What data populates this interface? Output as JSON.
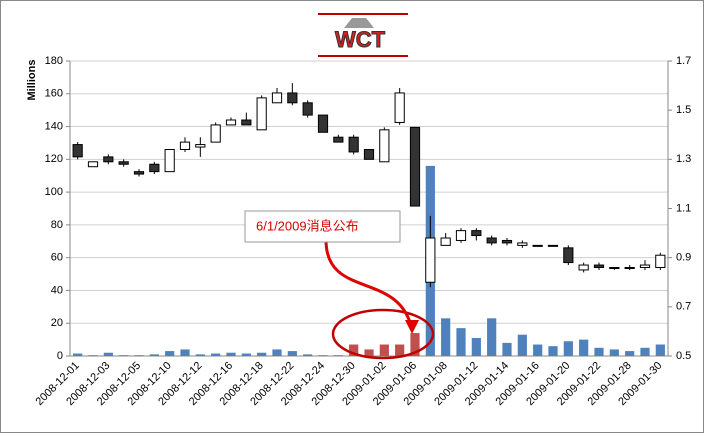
{
  "logo": "WCT",
  "chart_data": {
    "type": "candlestick",
    "y_label": "Millions",
    "annotation": "6/1/2009消息公布",
    "categories": [
      "2008-12-01",
      null,
      "2008-12-03",
      null,
      "2008-12-05",
      null,
      "2008-12-10",
      null,
      "2008-12-12",
      null,
      "2008-12-16",
      null,
      "2008-12-18",
      null,
      "2008-12-22",
      null,
      "2008-12-24",
      null,
      "2008-12-30",
      null,
      "2009-01-02",
      null,
      "2009-01-06",
      null,
      "2009-01-08",
      null,
      "2009-01-12",
      null,
      "2009-01-14",
      null,
      "2009-01-16",
      null,
      "2009-01-20",
      null,
      "2009-01-22",
      null,
      "2009-01-28",
      null,
      "2009-01-30"
    ],
    "volume": {
      "axis": "y",
      "color": "#4f81bd",
      "colors": [
        "#4f81bd",
        "#4f81bd",
        "#4f81bd",
        "#4f81bd",
        "#4f81bd",
        "#4f81bd",
        "#4f81bd",
        "#4f81bd",
        "#4f81bd",
        "#4f81bd",
        "#4f81bd",
        "#4f81bd",
        "#4f81bd",
        "#4f81bd",
        "#4f81bd",
        "#4f81bd",
        "#4f81bd",
        "#4f81bd",
        "#c0504d",
        "#c0504d",
        "#c0504d",
        "#c0504d",
        "#c0504d",
        "#4f81bd",
        "#4f81bd",
        "#4f81bd",
        "#4f81bd",
        "#4f81bd",
        "#4f81bd",
        "#4f81bd",
        "#4f81bd",
        "#4f81bd",
        "#4f81bd",
        "#4f81bd",
        "#4f81bd",
        "#4f81bd",
        "#4f81bd",
        "#4f81bd",
        "#4f81bd"
      ],
      "values": [
        1.5,
        0.5,
        2,
        0.5,
        0.5,
        1,
        3,
        4,
        1,
        1.5,
        2,
        1.5,
        2,
        4,
        3,
        1,
        0.5,
        0.5,
        7,
        4,
        7,
        7,
        14,
        116,
        23,
        17,
        11,
        23,
        8,
        13,
        7,
        6,
        9,
        10,
        5,
        4,
        3,
        5,
        7
      ]
    },
    "ohlc": {
      "axis": "y2",
      "up_color": "#ffffff",
      "down_color": "#333333",
      "open": [
        1.36,
        1.27,
        1.31,
        1.29,
        1.25,
        1.28,
        1.25,
        1.34,
        1.35,
        1.37,
        1.44,
        1.46,
        1.42,
        1.53,
        1.57,
        1.53,
        1.48,
        1.39,
        1.39,
        1.34,
        1.29,
        1.45,
        1.43,
        0.8,
        0.95,
        0.97,
        1.01,
        0.98,
        0.97,
        0.95,
        0.95,
        0.95,
        0.94,
        0.85,
        0.87,
        0.86,
        0.86,
        0.86,
        0.86
      ],
      "high": [
        1.37,
        1.29,
        1.32,
        1.3,
        1.26,
        1.29,
        1.34,
        1.39,
        1.39,
        1.45,
        1.47,
        1.49,
        1.56,
        1.59,
        1.61,
        1.54,
        1.48,
        1.4,
        1.4,
        1.34,
        1.43,
        1.59,
        1.43,
        1.07,
        1.0,
        1.02,
        1.02,
        0.99,
        0.98,
        0.97,
        0.95,
        0.95,
        0.95,
        0.88,
        0.88,
        0.86,
        0.87,
        0.89,
        0.92
      ],
      "low": [
        1.3,
        1.27,
        1.28,
        1.27,
        1.23,
        1.24,
        1.25,
        1.33,
        1.31,
        1.37,
        1.44,
        1.44,
        1.42,
        1.53,
        1.52,
        1.47,
        1.41,
        1.37,
        1.32,
        1.3,
        1.29,
        1.44,
        1.11,
        0.78,
        0.95,
        0.96,
        0.97,
        0.95,
        0.95,
        0.94,
        0.95,
        0.95,
        0.87,
        0.84,
        0.85,
        0.85,
        0.85,
        0.85,
        0.85
      ],
      "close": [
        1.31,
        1.29,
        1.29,
        1.28,
        1.24,
        1.25,
        1.34,
        1.37,
        1.36,
        1.44,
        1.46,
        1.44,
        1.55,
        1.57,
        1.53,
        1.48,
        1.41,
        1.37,
        1.33,
        1.3,
        1.42,
        1.57,
        1.11,
        0.98,
        0.98,
        1.01,
        0.99,
        0.96,
        0.96,
        0.96,
        0.95,
        0.95,
        0.88,
        0.87,
        0.86,
        0.86,
        0.86,
        0.87,
        0.91
      ]
    },
    "ylim": [
      0,
      180
    ],
    "yticks": [
      0,
      20,
      40,
      60,
      80,
      100,
      120,
      140,
      160,
      180
    ],
    "y2lim": [
      0.5,
      1.7
    ],
    "y2ticks": [
      0.5,
      0.7,
      0.9,
      1.1,
      1.3,
      1.5,
      1.7
    ],
    "grid": true
  }
}
